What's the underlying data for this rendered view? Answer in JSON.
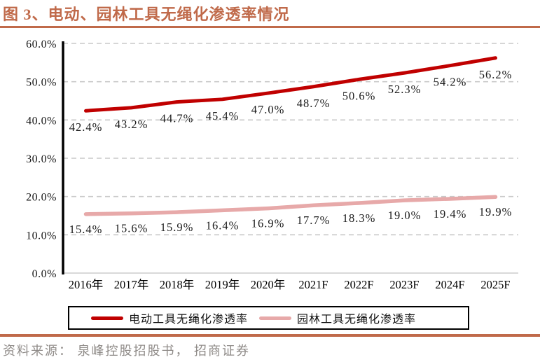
{
  "header": {
    "title": "图 3、电动、园林工具无绳化渗透率情况"
  },
  "chart_data": {
    "type": "line",
    "title": "图 3、电动、园林工具无绳化渗透率情况",
    "categories": [
      "2016年",
      "2017年",
      "2018年",
      "2019年",
      "2020年",
      "2021F",
      "2022F",
      "2023F",
      "2024F",
      "2025F"
    ],
    "series": [
      {
        "name": "电动工具无绳化渗透率",
        "color": "#c00000",
        "values": [
          42.4,
          43.2,
          44.7,
          45.4,
          47.0,
          48.7,
          50.6,
          52.3,
          54.2,
          56.2
        ]
      },
      {
        "name": "园林工具无绳化渗透率",
        "color": "#e7a9a9",
        "values": [
          15.4,
          15.6,
          15.9,
          16.4,
          16.9,
          17.7,
          18.3,
          19.0,
          19.4,
          19.9
        ]
      }
    ],
    "xlabel": "",
    "ylabel": "",
    "ylim": [
      0,
      60
    ],
    "yticks": [
      0,
      10,
      20,
      30,
      40,
      50,
      60
    ],
    "ytick_suffix": "%",
    "grid": "dashed-horizontal",
    "data_labels": "below-points",
    "legend_position": "bottom"
  },
  "footer": {
    "source": "资料来源： 泉峰控股招股书， 招商证券"
  },
  "colors": {
    "accent_rule": "#c06a4a",
    "title_text": "#c06a4a",
    "grid_line": "#c9c9c9",
    "zero_line": "#d9d9d9",
    "axis_line": "#000000",
    "label_text": "#1a1a1a",
    "source_text": "#8f8b88"
  }
}
